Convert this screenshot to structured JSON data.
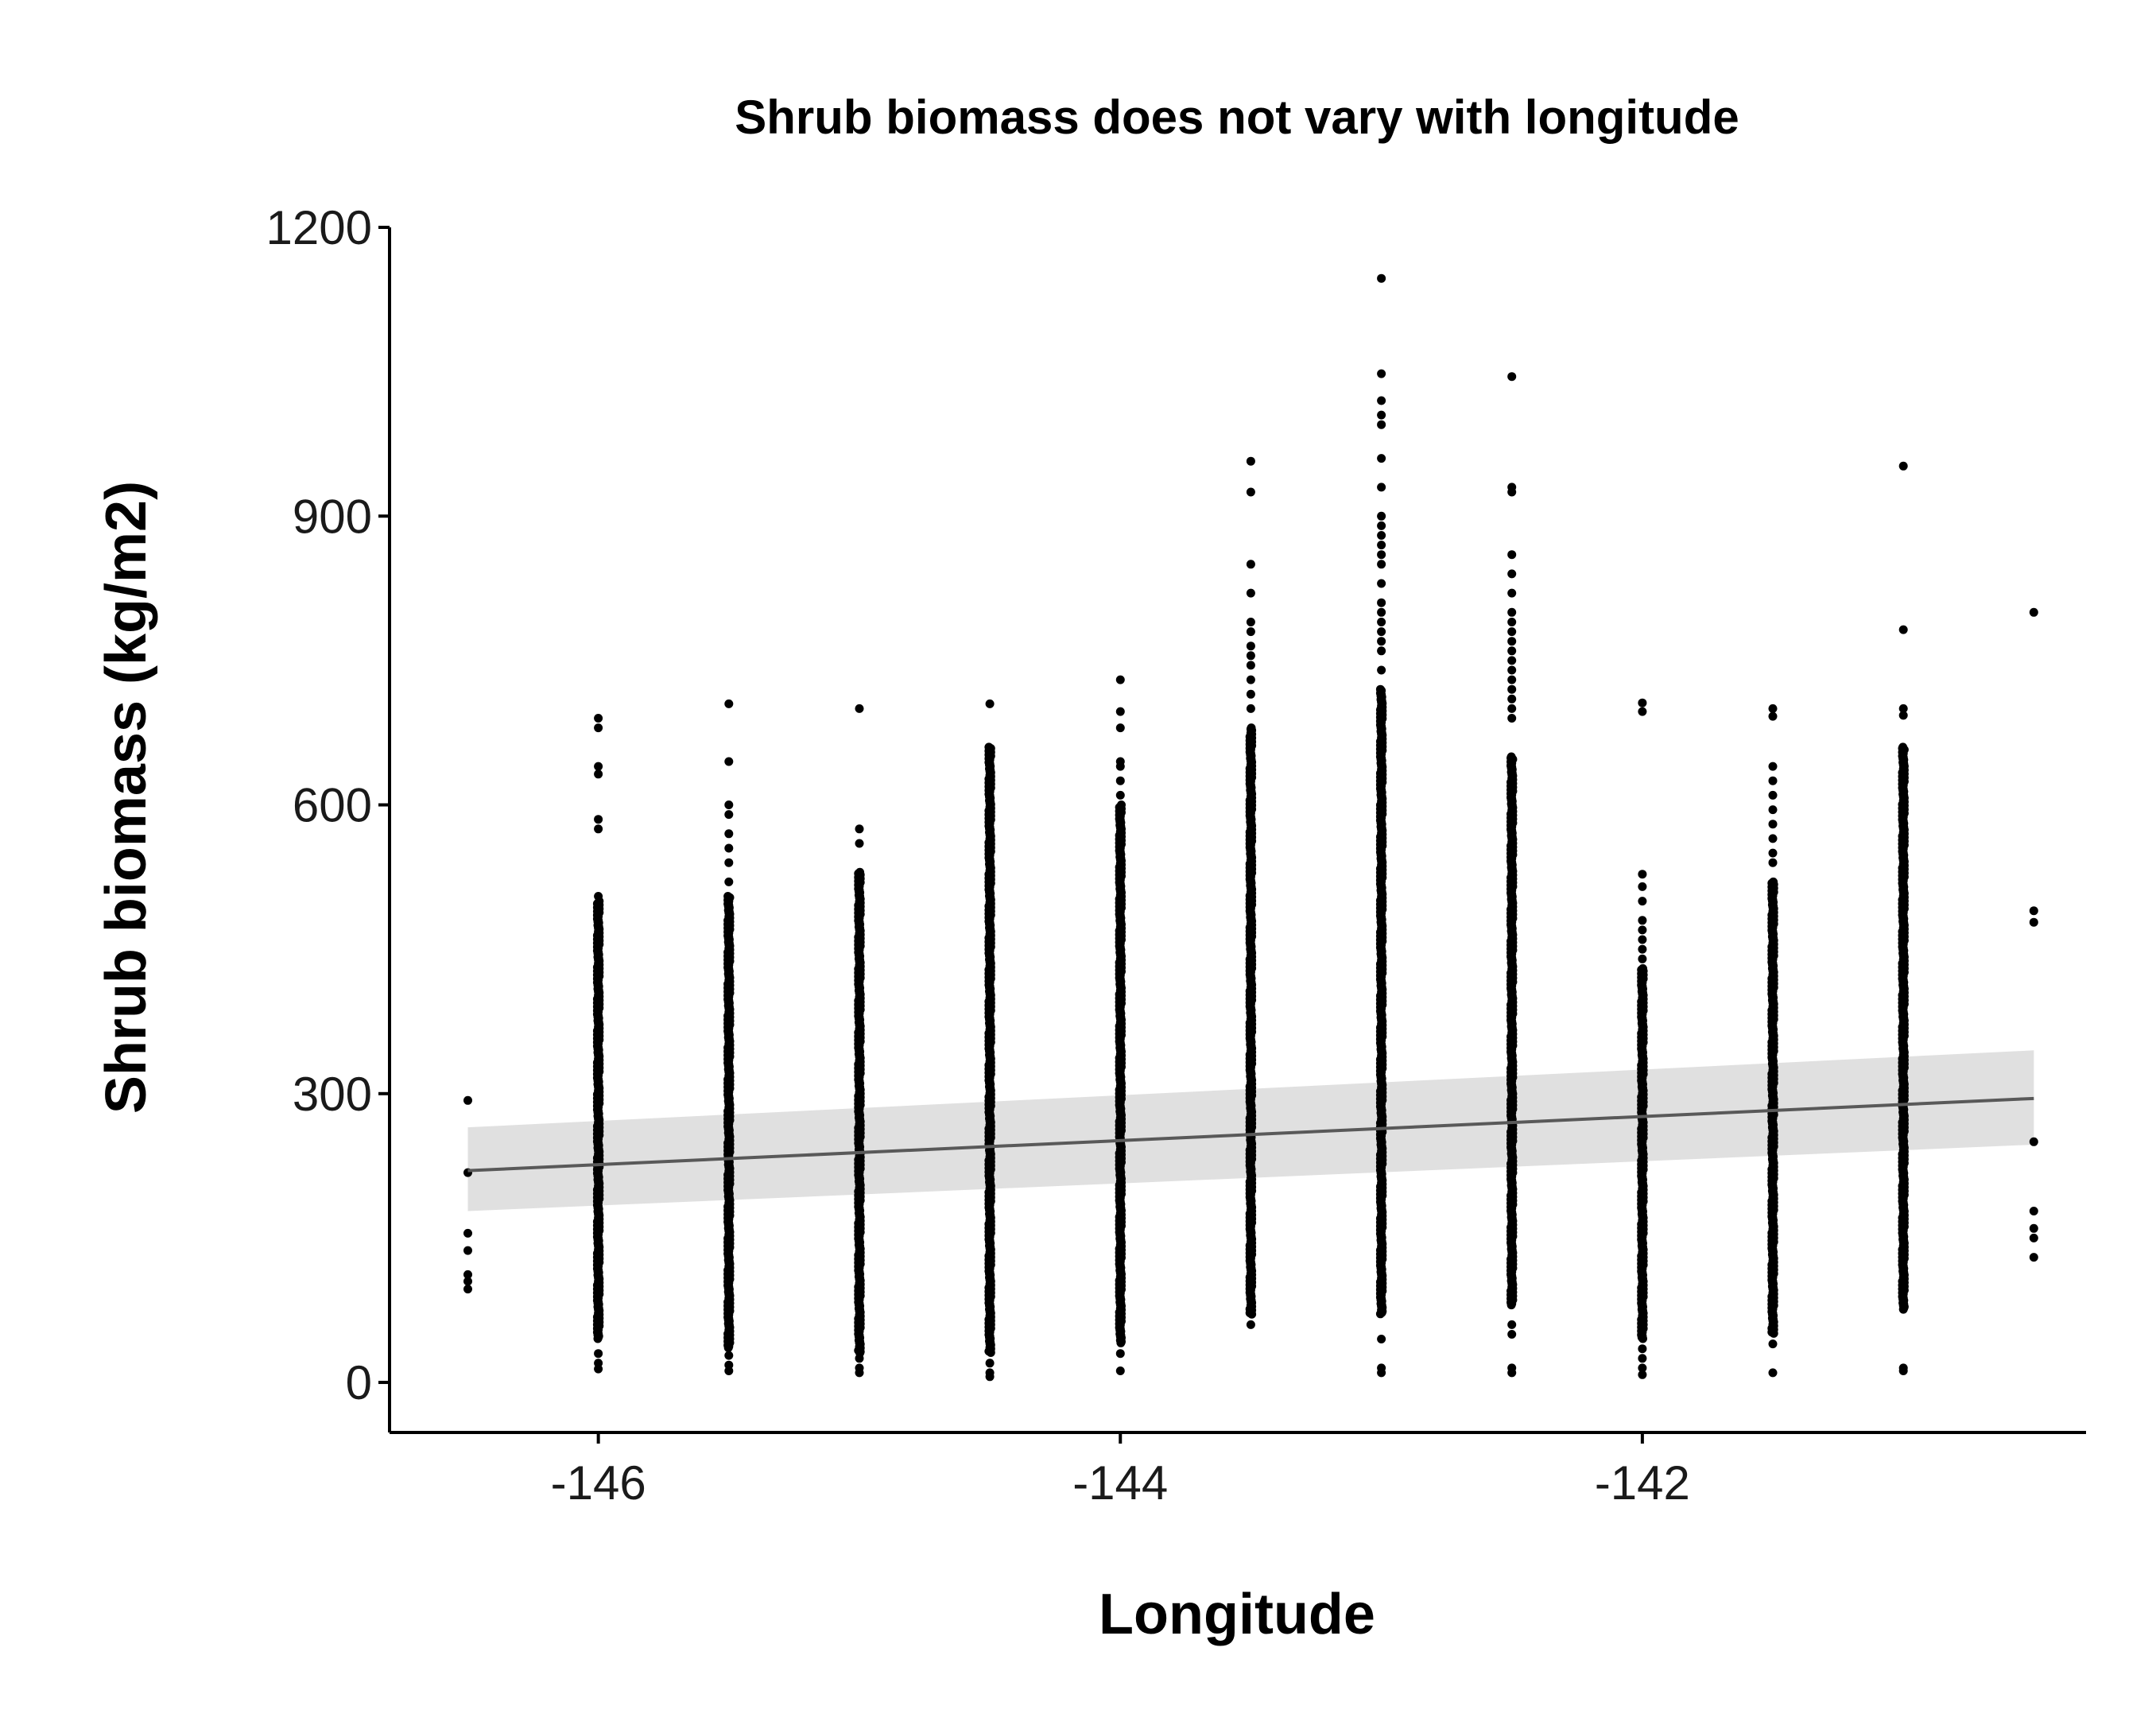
{
  "chart_data": {
    "type": "scatter",
    "title": "Shrub biomass does not vary with longitude",
    "xlabel": "Longitude",
    "ylabel": "Shrub biomass (kg/m2)",
    "xlim": [
      -146.8,
      -140.3
    ],
    "ylim": [
      -52,
      1200
    ],
    "x_ticks": [
      -146,
      -144,
      -142
    ],
    "x_tick_labels": [
      "-146",
      "-144",
      "-142"
    ],
    "y_ticks": [
      0,
      300,
      600,
      900,
      1200
    ],
    "y_tick_labels": [
      "0",
      "300",
      "600",
      "900",
      "1200"
    ],
    "grid": false,
    "legend": "none",
    "colors": {
      "points": "#000000",
      "fit_line": "#595959",
      "confidence_band": "#e0e0e0",
      "axis": "#000000"
    },
    "columns": [
      {
        "x": -146.5,
        "dense": [],
        "points": [
          293,
          218,
          155,
          137,
          112,
          105,
          97
        ]
      },
      {
        "x": -146.0,
        "dense": [
          [
            45,
            500
          ]
        ],
        "points": [
          690,
          680,
          640,
          632,
          585,
          575,
          505,
          30,
          20,
          14
        ]
      },
      {
        "x": -145.5,
        "dense": [
          [
            35,
            505
          ]
        ],
        "points": [
          705,
          645,
          600,
          590,
          570,
          555,
          540,
          520,
          28,
          18,
          12
        ]
      },
      {
        "x": -145.0,
        "dense": [
          [
            30,
            530
          ]
        ],
        "points": [
          700,
          575,
          560,
          25,
          15,
          10
        ]
      },
      {
        "x": -144.5,
        "dense": [
          [
            30,
            660
          ]
        ],
        "points": [
          705,
          20,
          10,
          6
        ]
      },
      {
        "x": -144.0,
        "dense": [
          [
            40,
            600
          ]
        ],
        "points": [
          730,
          697,
          680,
          645,
          640,
          625,
          610,
          30,
          12
        ]
      },
      {
        "x": -143.5,
        "dense": [
          [
            70,
            680
          ]
        ],
        "points": [
          957,
          925,
          850,
          820,
          790,
          780,
          765,
          755,
          745,
          730,
          715,
          700,
          60
        ]
      },
      {
        "x": -143.0,
        "dense": [
          [
            70,
            720
          ]
        ],
        "points": [
          1147,
          1048,
          1020,
          1005,
          995,
          960,
          930,
          900,
          890,
          880,
          870,
          860,
          850,
          830,
          810,
          800,
          790,
          780,
          770,
          760,
          740,
          45,
          15,
          10
        ]
      },
      {
        "x": -142.5,
        "dense": [
          [
            80,
            650
          ]
        ],
        "points": [
          1045,
          930,
          925,
          860,
          840,
          820,
          800,
          790,
          780,
          770,
          760,
          750,
          740,
          730,
          720,
          710,
          700,
          690,
          60,
          50,
          15,
          10
        ]
      },
      {
        "x": -142.0,
        "dense": [
          [
            45,
            430
          ]
        ],
        "points": [
          706,
          697,
          528,
          515,
          500,
          480,
          470,
          460,
          450,
          440,
          35,
          25,
          15,
          8
        ]
      },
      {
        "x": -141.5,
        "dense": [
          [
            50,
            520
          ]
        ],
        "points": [
          700,
          692,
          640,
          625,
          610,
          595,
          580,
          565,
          550,
          540,
          40,
          10
        ]
      },
      {
        "x": -141.0,
        "dense": [
          [
            75,
            660
          ]
        ],
        "points": [
          952,
          782,
          700,
          693,
          15,
          12
        ]
      },
      {
        "x": -140.5,
        "dense": [],
        "points": [
          800,
          490,
          478,
          250,
          178,
          160,
          150,
          130
        ]
      }
    ],
    "fit": {
      "x": [
        -146.5,
        -140.5
      ],
      "y": [
        220,
        295
      ],
      "ci_lower": [
        178,
        247
      ],
      "ci_upper": [
        265,
        345
      ]
    }
  }
}
